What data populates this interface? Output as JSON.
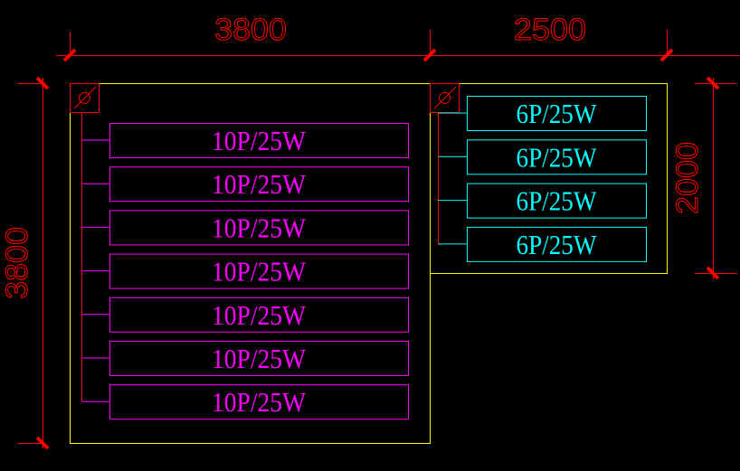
{
  "colors": {
    "background": "#000000",
    "room_outline": "#ffff00",
    "dimension": "#ff0000",
    "left_fixtures": "#ff00ff",
    "right_fixtures": "#00ffff",
    "junction": "#ff0000"
  },
  "dimensions": {
    "top_left": "3800",
    "top_right": "2500",
    "left_height": "3800",
    "right_height": "2000"
  },
  "left_room": {
    "junction_icon": "junction-box-icon",
    "fixtures": [
      "10P/25W",
      "10P/25W",
      "10P/25W",
      "10P/25W",
      "10P/25W",
      "10P/25W",
      "10P/25W"
    ]
  },
  "right_room": {
    "junction_icon": "junction-box-icon",
    "fixtures": [
      "6P/25W",
      "6P/25W",
      "6P/25W",
      "6P/25W"
    ]
  }
}
